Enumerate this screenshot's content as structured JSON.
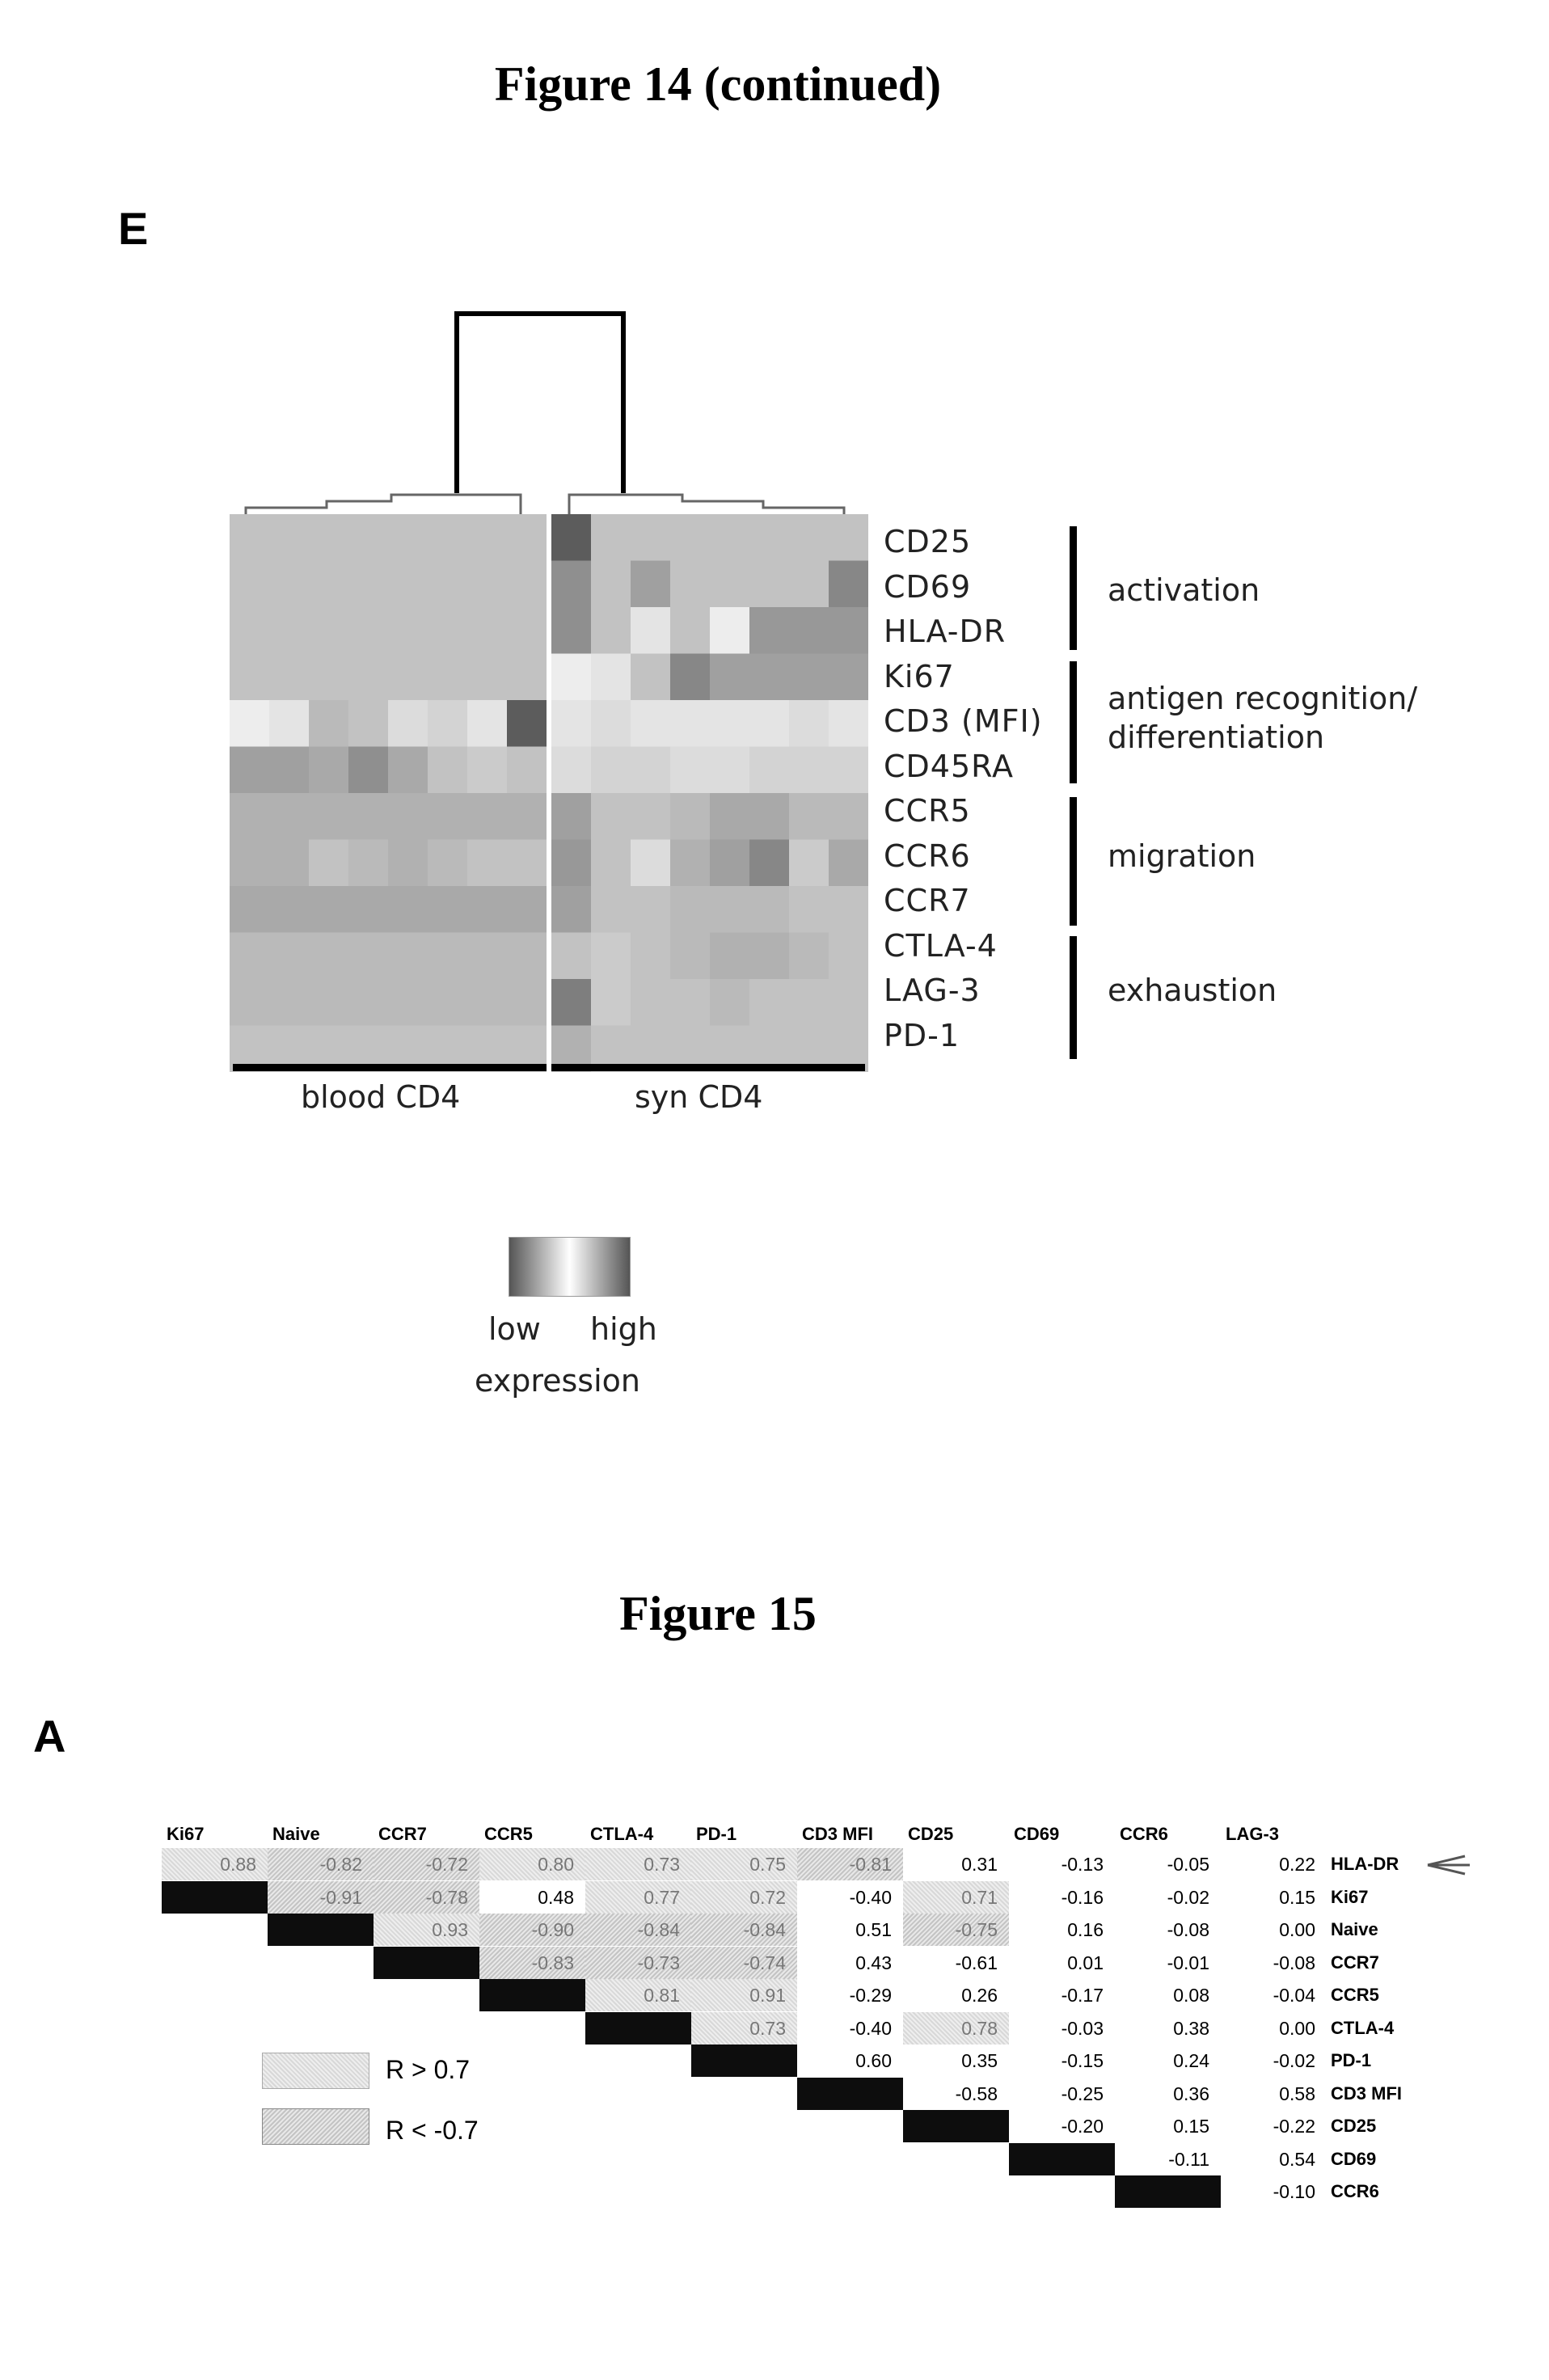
{
  "figure14": {
    "title": "Figure 14 (continued)",
    "panel": "E",
    "chart_data": {
      "type": "heatmap",
      "rows": [
        "CD25",
        "CD69",
        "HLA-DR",
        "Ki67",
        "CD3 (MFI)",
        "CD45RA",
        "CCR5",
        "CCR6",
        "CCR7",
        "CTLA-4",
        "LAG-3",
        "PD-1"
      ],
      "column_groups": [
        "blood CD4",
        "syn CD4"
      ],
      "row_groups": [
        {
          "label": "activation",
          "rows": [
            "CD25",
            "CD69",
            "HLA-DR"
          ]
        },
        {
          "label": "antigen recognition/ differentiation",
          "line1": "antigen recognition/",
          "line2": "differentiation",
          "rows": [
            "Ki67",
            "CD3 (MFI)",
            "CD45RA"
          ]
        },
        {
          "label": "migration",
          "rows": [
            "CCR5",
            "CCR6",
            "CCR7"
          ]
        },
        {
          "label": "exhaustion",
          "rows": [
            "CTLA-4",
            "LAG-3",
            "PD-1"
          ]
        }
      ],
      "values": [
        [
          0.3,
          0.3,
          0.3,
          0.3,
          0.3,
          0.3,
          0.3,
          0.3,
          0.9,
          0.3,
          0.3,
          0.3,
          0.3,
          0.3,
          0.3,
          0.3
        ],
        [
          0.3,
          0.3,
          0.3,
          0.3,
          0.3,
          0.3,
          0.3,
          0.3,
          0.6,
          0.3,
          0.5,
          0.3,
          0.3,
          0.3,
          0.3,
          0.65
        ],
        [
          0.3,
          0.3,
          0.3,
          0.3,
          0.3,
          0.3,
          0.3,
          0.3,
          0.6,
          0.3,
          0.1,
          0.3,
          0.05,
          0.55,
          0.55,
          0.55
        ],
        [
          0.3,
          0.3,
          0.3,
          0.3,
          0.3,
          0.3,
          0.3,
          0.3,
          0.05,
          0.1,
          0.3,
          0.65,
          0.5,
          0.5,
          0.5,
          0.5
        ],
        [
          0.05,
          0.1,
          0.35,
          0.3,
          0.15,
          0.2,
          0.1,
          0.9,
          0.1,
          0.15,
          0.1,
          0.1,
          0.1,
          0.1,
          0.15,
          0.1
        ],
        [
          0.5,
          0.5,
          0.45,
          0.6,
          0.45,
          0.3,
          0.25,
          0.3,
          0.15,
          0.2,
          0.2,
          0.15,
          0.15,
          0.2,
          0.2,
          0.2
        ],
        [
          0.4,
          0.4,
          0.4,
          0.4,
          0.4,
          0.4,
          0.4,
          0.4,
          0.5,
          0.3,
          0.3,
          0.35,
          0.45,
          0.45,
          0.35,
          0.35
        ],
        [
          0.4,
          0.4,
          0.3,
          0.35,
          0.4,
          0.35,
          0.3,
          0.3,
          0.55,
          0.3,
          0.15,
          0.4,
          0.5,
          0.65,
          0.25,
          0.45
        ],
        [
          0.45,
          0.45,
          0.45,
          0.45,
          0.45,
          0.45,
          0.45,
          0.45,
          0.5,
          0.3,
          0.3,
          0.35,
          0.35,
          0.35,
          0.3,
          0.3
        ],
        [
          0.35,
          0.35,
          0.35,
          0.35,
          0.35,
          0.35,
          0.35,
          0.35,
          0.3,
          0.25,
          0.3,
          0.35,
          0.4,
          0.4,
          0.35,
          0.3
        ],
        [
          0.35,
          0.35,
          0.35,
          0.35,
          0.35,
          0.35,
          0.35,
          0.35,
          0.7,
          0.25,
          0.3,
          0.3,
          0.35,
          0.3,
          0.3,
          0.3
        ],
        [
          0.3,
          0.3,
          0.3,
          0.3,
          0.3,
          0.3,
          0.3,
          0.3,
          0.4,
          0.3,
          0.3,
          0.3,
          0.3,
          0.3,
          0.3,
          0.3
        ]
      ],
      "legend": {
        "low": "low",
        "high": "high",
        "title": "expression"
      }
    }
  },
  "figure15": {
    "title": "Figure 15",
    "panel": "A",
    "chart_data": {
      "type": "table",
      "columns": [
        "Ki67",
        "Naive",
        "CCR7",
        "CCR5",
        "CTLA-4",
        "PD-1",
        "CD3 MFI",
        "CD25",
        "CD69",
        "CCR6",
        "LAG-3"
      ],
      "rows": [
        {
          "label": "HLA-DR",
          "values": [
            "0.88",
            "-0.82",
            "-0.72",
            "0.80",
            "0.73",
            "0.75",
            "-0.81",
            "0.31",
            "-0.13",
            "-0.05",
            "0.22"
          ]
        },
        {
          "label": "Ki67",
          "values": [
            "-0.91",
            "-0.78",
            "0.48",
            "0.77",
            "0.72",
            "-0.40",
            "0.71",
            "-0.16",
            "-0.02",
            "0.15"
          ]
        },
        {
          "label": "Naive",
          "values": [
            "0.93",
            "-0.90",
            "-0.84",
            "-0.84",
            "0.51",
            "-0.75",
            "0.16",
            "-0.08",
            "0.00"
          ]
        },
        {
          "label": "CCR7",
          "values": [
            "-0.83",
            "-0.73",
            "-0.74",
            "0.43",
            "-0.61",
            "0.01",
            "-0.01",
            "-0.08"
          ]
        },
        {
          "label": "CCR5",
          "values": [
            "0.81",
            "0.91",
            "-0.29",
            "0.26",
            "-0.17",
            "0.08",
            "-0.04"
          ]
        },
        {
          "label": "CTLA-4",
          "values": [
            "0.73",
            "-0.40",
            "0.78",
            "-0.03",
            "0.38",
            "0.00"
          ]
        },
        {
          "label": "PD-1",
          "values": [
            "0.60",
            "0.35",
            "-0.15",
            "0.24",
            "-0.02"
          ]
        },
        {
          "label": "CD3 MFI",
          "values": [
            "-0.58",
            "-0.25",
            "0.36",
            "0.58"
          ]
        },
        {
          "label": "CD25",
          "values": [
            "-0.20",
            "0.15",
            "-0.22"
          ]
        },
        {
          "label": "CD69",
          "values": [
            "-0.11",
            "0.54"
          ]
        },
        {
          "label": "CCR6",
          "values": [
            "-0.10"
          ]
        }
      ],
      "legend": [
        {
          "label": "R > 0.7"
        },
        {
          "label": "R < -0.7"
        }
      ],
      "threshold": 0.7,
      "arrow_icon": "arrow-pointing-left-icon"
    }
  }
}
